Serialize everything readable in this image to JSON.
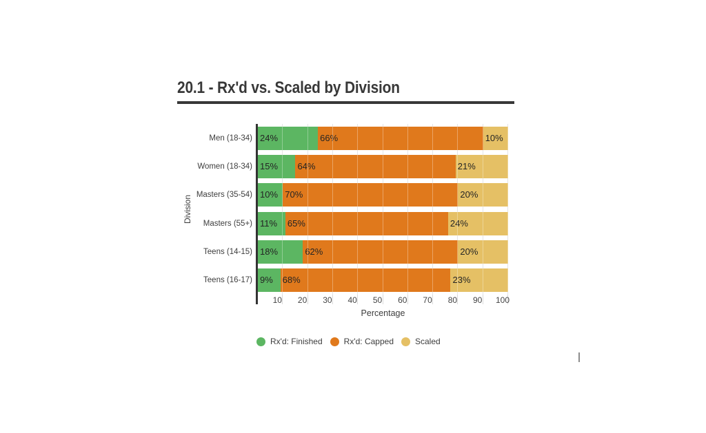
{
  "header": {
    "title": "20.1 - Rx'd vs. Scaled by Division"
  },
  "chart_data": {
    "type": "bar",
    "orientation": "horizontal",
    "stacked": true,
    "units": "percent",
    "title": "20.1 - Rx'd vs. Scaled by Division",
    "categories": [
      "Men (18-34)",
      "Women (18-34)",
      "Masters (35-54)",
      "Masters (55+)",
      "Teens (14-15)",
      "Teens (16-17)"
    ],
    "series": [
      {
        "name": "Rx'd: Finished",
        "color": "#5cb662",
        "values": [
          24,
          15,
          10,
          11,
          18,
          9
        ]
      },
      {
        "name": "Rx'd: Capped",
        "color": "#e0791c",
        "values": [
          66,
          64,
          70,
          65,
          62,
          68
        ]
      },
      {
        "name": "Scaled",
        "color": "#e5c065",
        "values": [
          10,
          21,
          20,
          24,
          20,
          23
        ]
      }
    ],
    "bar_labels": [
      [
        "24%",
        "66%",
        "10%"
      ],
      [
        "15%",
        "64%",
        "21%"
      ],
      [
        "10%",
        "70%",
        "20%"
      ],
      [
        "11%",
        "65%",
        "24%"
      ],
      [
        "18%",
        "62%",
        "20%"
      ],
      [
        "9%",
        "68%",
        "23%"
      ]
    ],
    "xlabel": "Percentage",
    "ylabel": "Division",
    "x_ticks": [
      10,
      20,
      30,
      40,
      50,
      60,
      70,
      80,
      90,
      100
    ],
    "xlim": [
      0,
      100
    ],
    "grid": "vertical",
    "gridline_color": "#d9d9d9",
    "axis_line_color": "#333333",
    "title_color": "#383838",
    "legend_position": "bottom"
  }
}
